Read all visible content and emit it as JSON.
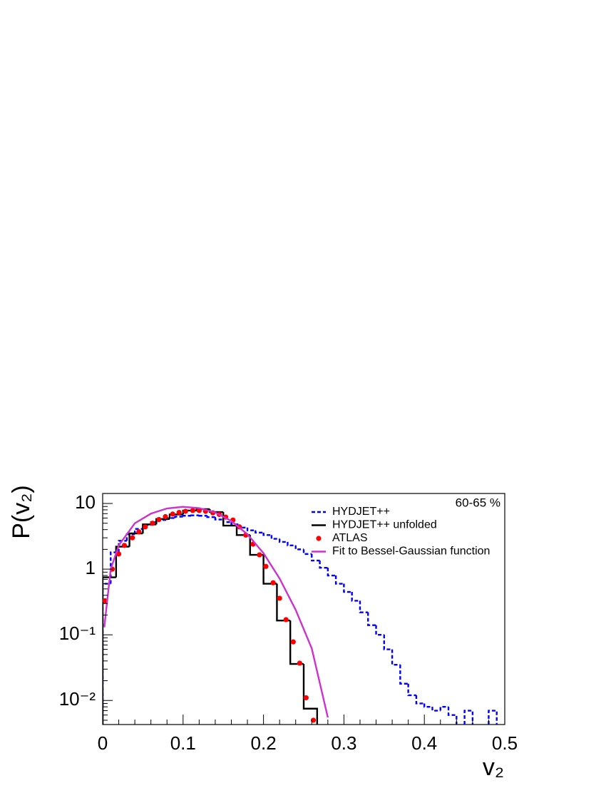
{
  "chart_data": {
    "type": "line",
    "annotation": "60-65 %",
    "x_label": "v₂",
    "y_label": "P(v₂)",
    "log_y": true,
    "xlim": [
      0,
      0.5
    ],
    "xticks": [
      0,
      0.1,
      0.2,
      0.3,
      0.4,
      0.5
    ],
    "ylim": [
      0.0043,
      14.2
    ],
    "yticks": [
      {
        "value": 0.01,
        "label": "10⁻²"
      },
      {
        "value": 0.1,
        "label": "10⁻¹"
      },
      1,
      10
    ],
    "legend": "top-right",
    "series": [
      {
        "name": "HYDJET++",
        "color": "#0000ff",
        "draw": "step",
        "line_style": "dashed",
        "bins": [
          0,
          0.01,
          0.02,
          0.03,
          0.04,
          0.05,
          0.06,
          0.07,
          0.08,
          0.09,
          0.1,
          0.11,
          0.12,
          0.13,
          0.14,
          0.15,
          0.16,
          0.17,
          0.18,
          0.19,
          0.2,
          0.21,
          0.22,
          0.23,
          0.24,
          0.25,
          0.26,
          0.27,
          0.28,
          0.29,
          0.3,
          0.31,
          0.32,
          0.33,
          0.34,
          0.35,
          0.36,
          0.37,
          0.38,
          0.39,
          0.4,
          0.41,
          0.42,
          0.43,
          0.44,
          0.45,
          0.46,
          0.47,
          0.48,
          0.49,
          0.5
        ],
        "values": [
          0.6,
          1.8,
          2.7,
          3.4,
          4.1,
          4.7,
          5.2,
          5.6,
          6.0,
          6.3,
          6.5,
          6.6,
          6.5,
          6.2,
          5.7,
          5.2,
          4.8,
          4.3,
          3.9,
          3.6,
          3.3,
          2.9,
          2.6,
          2.3,
          2.0,
          1.7,
          1.35,
          1.05,
          0.8,
          0.6,
          0.45,
          0.33,
          0.22,
          0.14,
          0.1,
          0.06,
          0.035,
          0.018,
          0.012,
          0.009,
          0.008,
          0.007,
          0.008,
          0.006,
          null,
          0.007,
          null,
          null,
          0.007,
          null
        ]
      },
      {
        "name": "HYDJET++ unfolded",
        "color": "#000000",
        "draw": "step",
        "line_style": "solid",
        "bins": [
          0,
          0.0167,
          0.0333,
          0.05,
          0.0667,
          0.0833,
          0.1,
          0.1167,
          0.1333,
          0.15,
          0.1667,
          0.1833,
          0.2,
          0.2167,
          0.2333,
          0.25,
          0.2667
        ],
        "values": [
          0.75,
          2.2,
          3.5,
          4.8,
          5.8,
          6.8,
          7.8,
          8.2,
          7.4,
          4.6,
          3.3,
          1.65,
          0.6,
          0.165,
          0.036,
          0.0075
        ]
      },
      {
        "name": "ATLAS",
        "color": "#ff0000",
        "draw": "marker",
        "x": [
          0.003,
          0.012,
          0.02,
          0.027,
          0.037,
          0.045,
          0.053,
          0.062,
          0.07,
          0.078,
          0.087,
          0.095,
          0.103,
          0.112,
          0.12,
          0.128,
          0.137,
          0.145,
          0.153,
          0.162,
          0.17,
          0.178,
          0.187,
          0.195,
          0.203,
          0.212,
          0.22,
          0.228,
          0.237,
          0.245,
          0.253,
          0.262
        ],
        "values": [
          0.33,
          1.0,
          1.7,
          2.3,
          3.0,
          3.7,
          4.4,
          5.0,
          5.7,
          6.3,
          6.9,
          7.3,
          7.6,
          7.8,
          7.8,
          7.6,
          7.2,
          6.8,
          6.2,
          5.6,
          4.4,
          3.3,
          2.4,
          1.65,
          1.1,
          0.62,
          0.36,
          0.17,
          0.078,
          0.037,
          0.011,
          0.005
        ]
      },
      {
        "name": "Fit to Bessel-Gaussian function",
        "color": "#cc33cc",
        "draw": "line",
        "x": [
          0.002,
          0.01,
          0.02,
          0.04,
          0.06,
          0.08,
          0.1,
          0.12,
          0.14,
          0.16,
          0.18,
          0.2,
          0.22,
          0.24,
          0.26,
          0.28
        ],
        "values": [
          0.13,
          1.0,
          2.3,
          5.0,
          7.0,
          8.4,
          8.9,
          8.5,
          7.3,
          5.4,
          3.4,
          1.75,
          0.72,
          0.24,
          0.062,
          0.0055
        ]
      }
    ]
  }
}
